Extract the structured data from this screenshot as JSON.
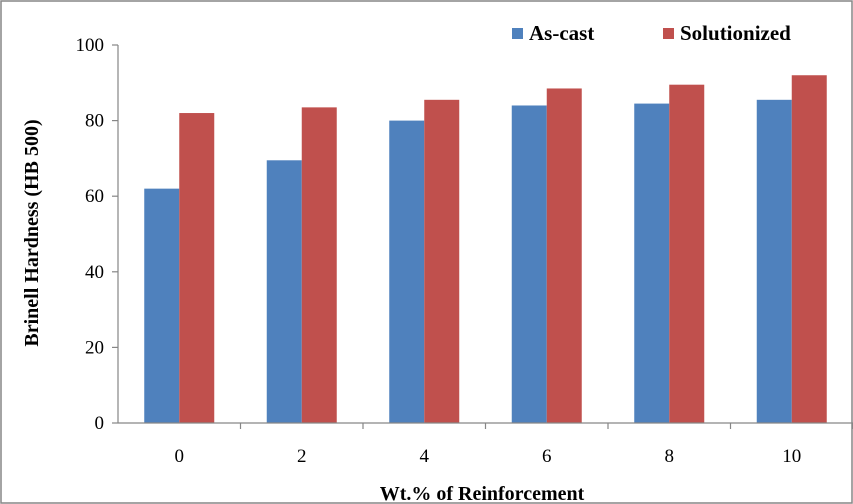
{
  "chart_data": {
    "type": "bar",
    "categories": [
      "0",
      "2",
      "4",
      "6",
      "8",
      "10"
    ],
    "series": [
      {
        "name": "As-cast",
        "color": "#4f81bd",
        "values": [
          62,
          69.5,
          80,
          84,
          84.5,
          85.5
        ]
      },
      {
        "name": "Solutionized",
        "color": "#c0504d",
        "values": [
          82,
          83.5,
          85.5,
          88.5,
          89.5,
          92
        ]
      }
    ],
    "xlabel": "Wt.% of Reinforcement",
    "ylabel": "Brinell Hardness (HB 500)",
    "ylim": [
      0,
      100
    ],
    "yticks": [
      "0",
      "20",
      "40",
      "60",
      "80",
      "100"
    ],
    "grid": false,
    "legend_position": "top-right"
  }
}
